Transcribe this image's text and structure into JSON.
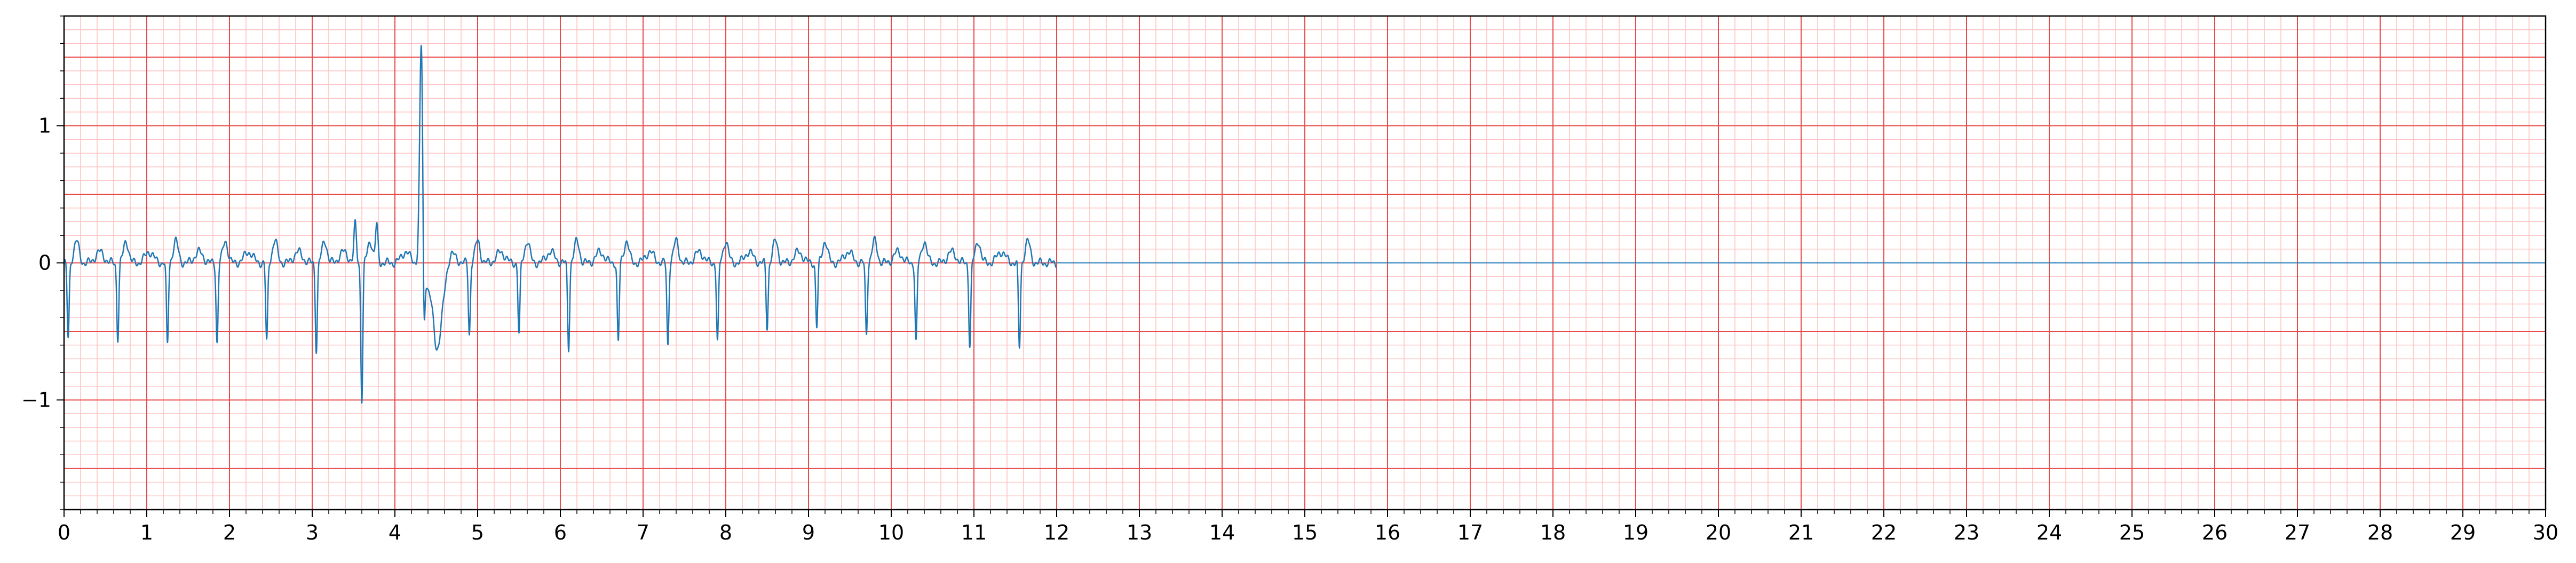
{
  "chart_data": {
    "type": "line",
    "title": "",
    "xlabel": "",
    "ylabel": "",
    "xlim": [
      0,
      30
    ],
    "ylim": [
      -1.8,
      1.8
    ],
    "x_ticks": [
      0,
      1,
      2,
      3,
      4,
      5,
      6,
      7,
      8,
      9,
      10,
      11,
      12,
      13,
      14,
      15,
      16,
      17,
      18,
      19,
      20,
      21,
      22,
      23,
      24,
      25,
      26,
      27,
      28,
      29,
      30
    ],
    "x_tick_labels": [
      "0",
      "1",
      "2",
      "3",
      "4",
      "5",
      "6",
      "7",
      "8",
      "9",
      "10",
      "11",
      "12",
      "13",
      "14",
      "15",
      "16",
      "17",
      "18",
      "19",
      "20",
      "21",
      "22",
      "23",
      "24",
      "25",
      "26",
      "27",
      "28",
      "29",
      "30"
    ],
    "y_ticks": [
      -1,
      0,
      1
    ],
    "y_tick_labels": [
      "−1",
      "0",
      "1"
    ],
    "grid": {
      "major": true,
      "minor": true,
      "major_color": "#e84a4a",
      "minor_color": "#ffc0c0",
      "x_minor_step": 0.2,
      "y_minor_step": 0.1
    },
    "legend": "none",
    "series": [
      {
        "color": "#1f77b4",
        "beat_times": [
          0.05,
          0.65,
          1.25,
          1.85,
          2.45,
          3.05,
          3.6,
          4.35,
          4.9,
          5.5,
          6.1,
          6.7,
          7.3,
          7.9,
          8.5,
          9.1,
          9.7,
          10.3,
          10.95,
          11.55
        ],
        "beat_depths": [
          -0.55,
          -0.55,
          -0.6,
          -0.58,
          -0.58,
          -0.63,
          -1.0,
          -0.75,
          -0.52,
          -0.52,
          -0.62,
          -0.58,
          -0.6,
          -0.58,
          -0.47,
          -0.47,
          -0.52,
          -0.58,
          -0.6,
          -0.62
        ],
        "special_points": [
          {
            "x": 3.52,
            "y": 0.28
          },
          {
            "x": 3.78,
            "y": 0.27
          },
          {
            "x": 4.32,
            "y": 1.63
          }
        ],
        "baseline_from_x": 12.0,
        "baseline_value": 0
      }
    ]
  }
}
